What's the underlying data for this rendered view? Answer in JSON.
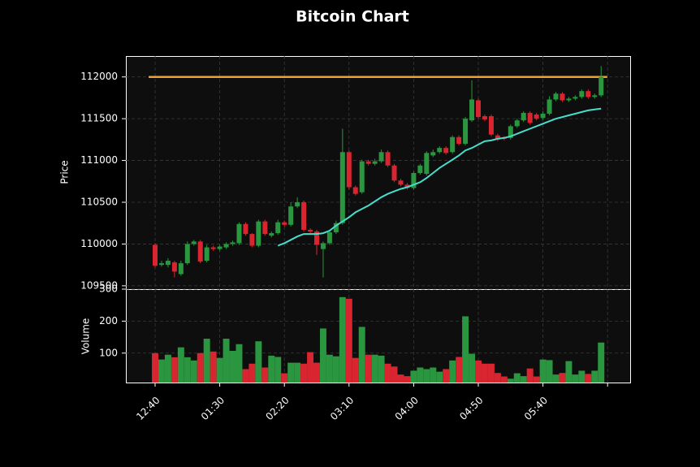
{
  "chart_data": {
    "type": "candlestick",
    "title": "Bitcoin Chart",
    "ylabel": "Price",
    "categories": [
      "12:40",
      null,
      null,
      null,
      null,
      null,
      null,
      null,
      null,
      null,
      "01:30",
      null,
      null,
      null,
      null,
      null,
      null,
      null,
      null,
      null,
      "02:20",
      null,
      null,
      null,
      null,
      null,
      null,
      null,
      null,
      null,
      "03:10",
      null,
      null,
      null,
      null,
      null,
      null,
      null,
      null,
      null,
      "04:00",
      null,
      null,
      null,
      null,
      null,
      null,
      null,
      null,
      null,
      "04:50",
      null,
      null,
      null,
      null,
      null,
      null,
      null,
      null,
      null,
      "05:40",
      null,
      null,
      null,
      null,
      null,
      null,
      null,
      null,
      null
    ],
    "open": [
      109990,
      109750,
      109750,
      109780,
      109640,
      109770,
      110000,
      110030,
      109800,
      109960,
      109940,
      109960,
      110000,
      110010,
      110240,
      110120,
      109980,
      110270,
      110100,
      110130,
      110260,
      110230,
      110450,
      110500,
      110170,
      110150,
      109940,
      110010,
      110140,
      110250,
      111100,
      110680,
      110620,
      110990,
      110960,
      110990,
      111100,
      110940,
      110760,
      110710,
      110670,
      110850,
      110840,
      111060,
      111100,
      111150,
      111100,
      111280,
      111200,
      111480,
      111720,
      111530,
      111530,
      111300,
      111270,
      111270,
      111410,
      111480,
      111570,
      111550,
      111510,
      111560,
      111730,
      111800,
      111720,
      111740,
      111760,
      111830,
      111760,
      111780
    ],
    "high": [
      110010,
      109800,
      109830,
      109800,
      109800,
      110030,
      110050,
      110050,
      109990,
      109980,
      109990,
      110020,
      110040,
      110260,
      110260,
      110130,
      110290,
      110290,
      110150,
      110290,
      110280,
      110500,
      110560,
      110520,
      110190,
      110170,
      110030,
      110160,
      110280,
      111380,
      111120,
      110700,
      111010,
      111010,
      111020,
      111130,
      111120,
      110960,
      110780,
      110730,
      110870,
      110960,
      111110,
      111130,
      111170,
      111170,
      111300,
      111300,
      111520,
      111960,
      111740,
      111550,
      111550,
      111320,
      111290,
      111430,
      111500,
      111590,
      111590,
      111570,
      111590,
      111770,
      111820,
      111820,
      111760,
      111780,
      111850,
      111850,
      111800,
      112130
    ],
    "low": [
      109720,
      109730,
      109720,
      109600,
      109620,
      109750,
      109980,
      109770,
      109780,
      109920,
      109920,
      109940,
      109980,
      109990,
      110100,
      109960,
      109960,
      110100,
      110080,
      110110,
      110210,
      110210,
      110430,
      110150,
      110130,
      109870,
      109600,
      109990,
      110120,
      110230,
      110650,
      110580,
      110600,
      110940,
      110940,
      110970,
      110920,
      110740,
      110690,
      110650,
      110650,
      110830,
      110820,
      111040,
      111080,
      111070,
      111080,
      111180,
      111180,
      111460,
      111500,
      111470,
      111290,
      111230,
      111240,
      111250,
      111390,
      111460,
      111430,
      111480,
      111490,
      111540,
      111710,
      111700,
      111700,
      111720,
      111740,
      111740,
      111740,
      111760
    ],
    "close": [
      109740,
      109770,
      109800,
      109670,
      109770,
      110000,
      110030,
      109790,
      109960,
      109940,
      109970,
      110000,
      110020,
      110240,
      110120,
      109980,
      110270,
      110120,
      110130,
      110260,
      110230,
      110450,
      110500,
      110170,
      110150,
      109990,
      110010,
      110140,
      110250,
      111100,
      110680,
      110600,
      110990,
      110960,
      110990,
      111100,
      110940,
      110760,
      110710,
      110670,
      110850,
      110940,
      111090,
      111100,
      111150,
      111090,
      111280,
      111200,
      111500,
      111730,
      111520,
      111490,
      111310,
      111250,
      111260,
      111410,
      111480,
      111570,
      111450,
      111500,
      111560,
      111730,
      111800,
      111720,
      111740,
      111760,
      111830,
      111760,
      111780,
      112000
    ],
    "up_color": "#2a9640",
    "down_color": "#d9252f",
    "ylim": [
      109460,
      112250
    ],
    "yticks": [
      109500,
      110000,
      110500,
      111000,
      111500,
      112000
    ],
    "grid": true,
    "moving_average": {
      "color": "#48dccb",
      "values": [
        null,
        null,
        null,
        null,
        null,
        null,
        null,
        null,
        null,
        null,
        null,
        null,
        null,
        null,
        null,
        null,
        null,
        null,
        null,
        109980,
        110010,
        110050,
        110090,
        110120,
        110120,
        110120,
        110130,
        110160,
        110220,
        110270,
        110320,
        110380,
        110420,
        110460,
        110510,
        110560,
        110600,
        110630,
        110660,
        110680,
        110710,
        110740,
        110790,
        110850,
        110910,
        110960,
        111010,
        111060,
        111120,
        111150,
        111190,
        111230,
        111240,
        111260,
        111270,
        111290,
        111320,
        111350,
        111380,
        111410,
        111440,
        111470,
        111500,
        111520,
        111540,
        111560,
        111580,
        111600,
        111610,
        111620
      ]
    },
    "hline": {
      "value": 112000,
      "color": "#f0a030"
    },
    "volume": {
      "ylabel": "Volume",
      "ylim": [
        8,
        300
      ],
      "yticks": [
        100,
        200,
        300
      ],
      "values": [
        100,
        80,
        95,
        87,
        118,
        87,
        77,
        100,
        145,
        105,
        85,
        145,
        107,
        128,
        50,
        67,
        137,
        55,
        92,
        88,
        37,
        70,
        70,
        67,
        103,
        70,
        177,
        95,
        90,
        275,
        270,
        85,
        182,
        95,
        95,
        92,
        67,
        58,
        33,
        28,
        45,
        55,
        50,
        55,
        42,
        50,
        77,
        88,
        215,
        98,
        77,
        67,
        67,
        38,
        27,
        20,
        37,
        28,
        52,
        27,
        80,
        78,
        33,
        38,
        75,
        33,
        45,
        35,
        45,
        133
      ]
    }
  }
}
